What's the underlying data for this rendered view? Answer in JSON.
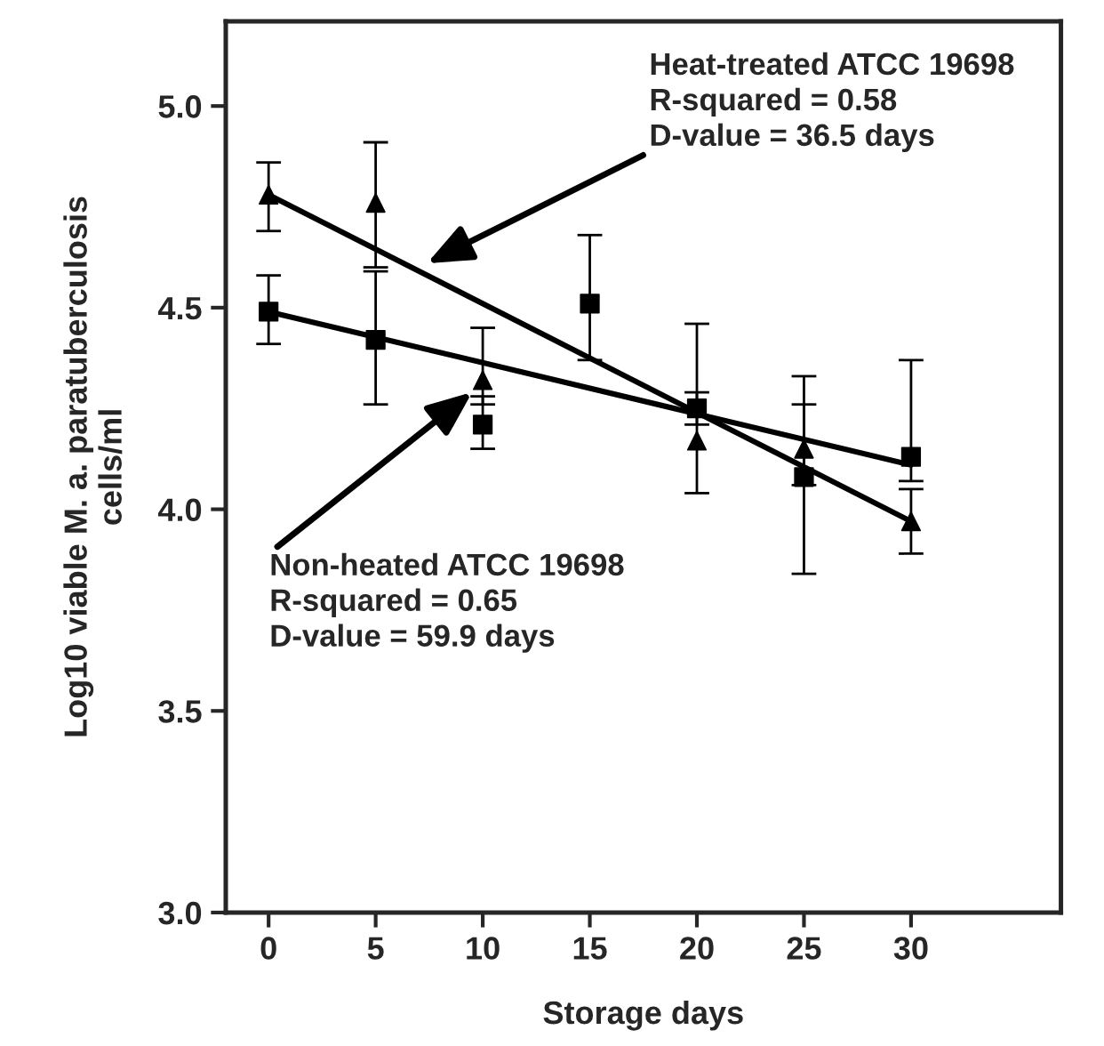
{
  "chart_data": {
    "type": "scatter",
    "xlabel": "Storage days",
    "ylabel": "Log10 viable M. a. paratuberculosis\ncells/ml",
    "xlim": [
      -2,
      37
    ],
    "xticks": [
      0,
      5,
      10,
      15,
      20,
      25,
      30
    ],
    "ylim": [
      3.0,
      5.21
    ],
    "yticks": [
      {
        "value": 3.0,
        "label": "3.0"
      },
      {
        "value": 3.5,
        "label": "3.5"
      },
      {
        "value": 4.0,
        "label": "4.0"
      },
      {
        "value": 4.5,
        "label": "4.5"
      },
      {
        "value": 5.0,
        "label": "5.0"
      }
    ],
    "grid": false,
    "legend": false,
    "series": [
      {
        "marker": "triangle",
        "color": "#000000",
        "x": [
          0,
          5,
          10,
          15,
          20,
          25,
          30
        ],
        "values": [
          4.78,
          4.76,
          4.32,
          null,
          4.17,
          4.15,
          3.97
        ],
        "errors": [
          [
            4.69,
            4.86
          ],
          [
            4.6,
            4.91
          ],
          [
            4.26,
            4.45
          ],
          null,
          [
            4.04,
            4.46
          ],
          [
            4.06,
            4.33
          ],
          [
            3.89,
            4.05
          ]
        ]
      },
      {
        "marker": "square",
        "color": "#000000",
        "x": [
          0,
          5,
          10,
          15,
          20,
          25,
          30
        ],
        "values": [
          4.49,
          4.42,
          4.21,
          4.51,
          4.25,
          4.08,
          4.13
        ],
        "errors": [
          [
            4.41,
            4.58
          ],
          [
            4.26,
            4.59
          ],
          [
            4.15,
            4.28
          ],
          [
            4.37,
            4.68
          ],
          [
            4.21,
            4.29
          ],
          [
            3.84,
            4.26
          ],
          [
            4.07,
            4.37
          ]
        ]
      },
      {
        "type": "line",
        "color": "#000000",
        "x": [
          0,
          30
        ],
        "values": [
          4.78,
          3.97
        ]
      },
      {
        "type": "line",
        "color": "#000000",
        "x": [
          0,
          30
        ],
        "values": [
          4.49,
          4.11
        ]
      }
    ],
    "annotations": [
      {
        "text": "Heat-treated ATCC 19698\nR-squared = 0.58\nD-value = 36.5 days",
        "x": 7.4,
        "y": 4.61
      },
      {
        "text": "Non-heated ATCC 19698\nR-squared = 0.65\nD-value = 59.9 days",
        "x": 9.5,
        "y": 4.29
      }
    ]
  }
}
